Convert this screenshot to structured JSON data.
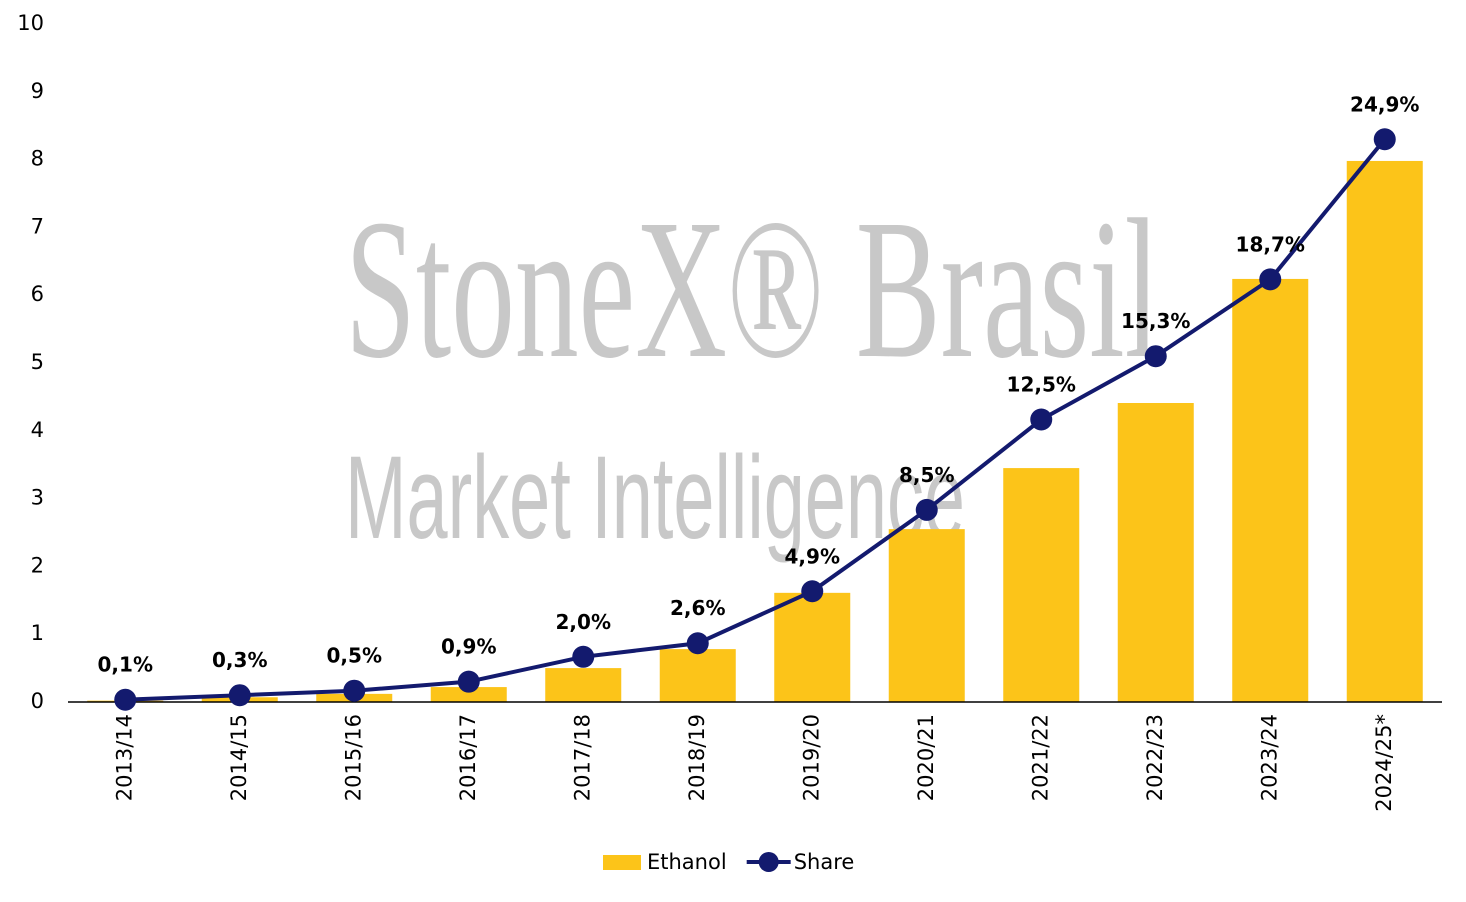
{
  "chart_data": {
    "type": "bar_line",
    "watermark": [
      "StoneX® Brasil",
      "Market Intelligence"
    ],
    "categories": [
      "2013/14",
      "2014/15",
      "2015/16",
      "2016/17",
      "2017/18",
      "2018/19",
      "2019/20",
      "2020/21",
      "2021/22",
      "2022/23",
      "2023/24",
      "2024/25*"
    ],
    "series": [
      {
        "name": "Ethanol",
        "kind": "bar",
        "color": "#fcc419",
        "values": [
          0.02,
          0.07,
          0.12,
          0.22,
          0.5,
          0.78,
          1.61,
          2.55,
          3.45,
          4.41,
          6.24,
          7.98
        ]
      },
      {
        "name": "Share",
        "kind": "line",
        "axis": "y2",
        "color": "#131a6e",
        "values": [
          0.1,
          0.3,
          0.5,
          0.9,
          2.0,
          2.6,
          4.9,
          8.5,
          12.5,
          15.3,
          18.7,
          24.9
        ],
        "value_labels": [
          "0,1%",
          "0,3%",
          "0,5%",
          "0,9%",
          "2,0%",
          "2,6%",
          "4,9%",
          "8,5%",
          "12,5%",
          "15,3%",
          "18,7%",
          "24,9%"
        ]
      }
    ],
    "ylim": [
      0,
      10
    ],
    "yticks": [
      0,
      1,
      2,
      3,
      4,
      5,
      6,
      7,
      8,
      9,
      10
    ],
    "y2lim": [
      0,
      30
    ],
    "grid": false,
    "legend": "bottom"
  }
}
